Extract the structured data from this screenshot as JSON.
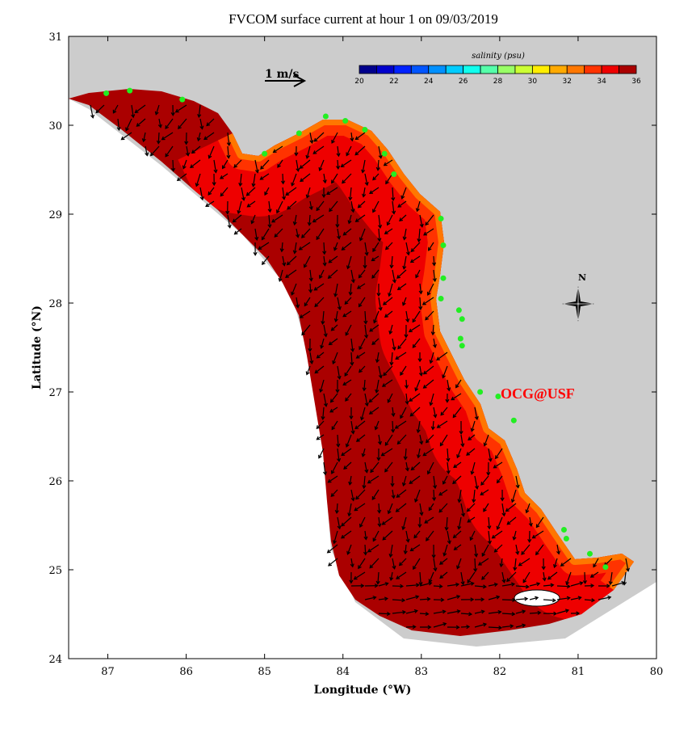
{
  "title": "FVCOM surface current at hour 1 on 09/03/2019",
  "xlabel": "Longitude (°W)",
  "ylabel": "Latitude (°N)",
  "xlim": [
    87.5,
    80
  ],
  "ylim": [
    24,
    31
  ],
  "x_ticks": [
    "87",
    "86",
    "85",
    "84",
    "83",
    "82",
    "81",
    "80"
  ],
  "y_ticks": [
    "24",
    "25",
    "26",
    "27",
    "28",
    "29",
    "30",
    "31"
  ],
  "scale_arrow_label": "1 m/s",
  "compass_label": "N",
  "watermark": "OCG@USF",
  "colorbar": {
    "title": "salinity (psu)",
    "range": [
      20,
      36
    ],
    "tick_labels": [
      "20",
      "22",
      "24",
      "26",
      "28",
      "30",
      "32",
      "34",
      "36"
    ],
    "colors": [
      "#00008c",
      "#0000cc",
      "#0022ff",
      "#0055ff",
      "#0090ff",
      "#00ccff",
      "#11ffee",
      "#55ffaa",
      "#99ff66",
      "#ccff33",
      "#ffee00",
      "#ffaa00",
      "#ff7700",
      "#ff3300",
      "#ee0000",
      "#aa0000"
    ]
  },
  "colors": {
    "land": "#cccccc",
    "offshore": "#aa0000",
    "shelf": "#ee0000",
    "coastal": "#ff7700",
    "station": "#22ee22",
    "watermark": "#ff0000"
  },
  "stations": [
    [
      87.02,
      30.36
    ],
    [
      86.72,
      30.39
    ],
    [
      86.05,
      30.29
    ],
    [
      85.0,
      29.68
    ],
    [
      84.56,
      29.91
    ],
    [
      84.22,
      30.1
    ],
    [
      83.97,
      30.05
    ],
    [
      83.72,
      29.95
    ],
    [
      83.47,
      29.68
    ],
    [
      83.35,
      29.45
    ],
    [
      82.75,
      28.95
    ],
    [
      82.72,
      28.65
    ],
    [
      82.72,
      28.28
    ],
    [
      82.75,
      28.05
    ],
    [
      82.52,
      27.92
    ],
    [
      82.48,
      27.82
    ],
    [
      82.5,
      27.6
    ],
    [
      82.48,
      27.52
    ],
    [
      82.25,
      27.0
    ],
    [
      82.02,
      26.95
    ],
    [
      81.82,
      26.68
    ],
    [
      81.18,
      25.45
    ],
    [
      81.15,
      25.35
    ],
    [
      80.85,
      25.18
    ],
    [
      80.65,
      25.03
    ]
  ]
}
